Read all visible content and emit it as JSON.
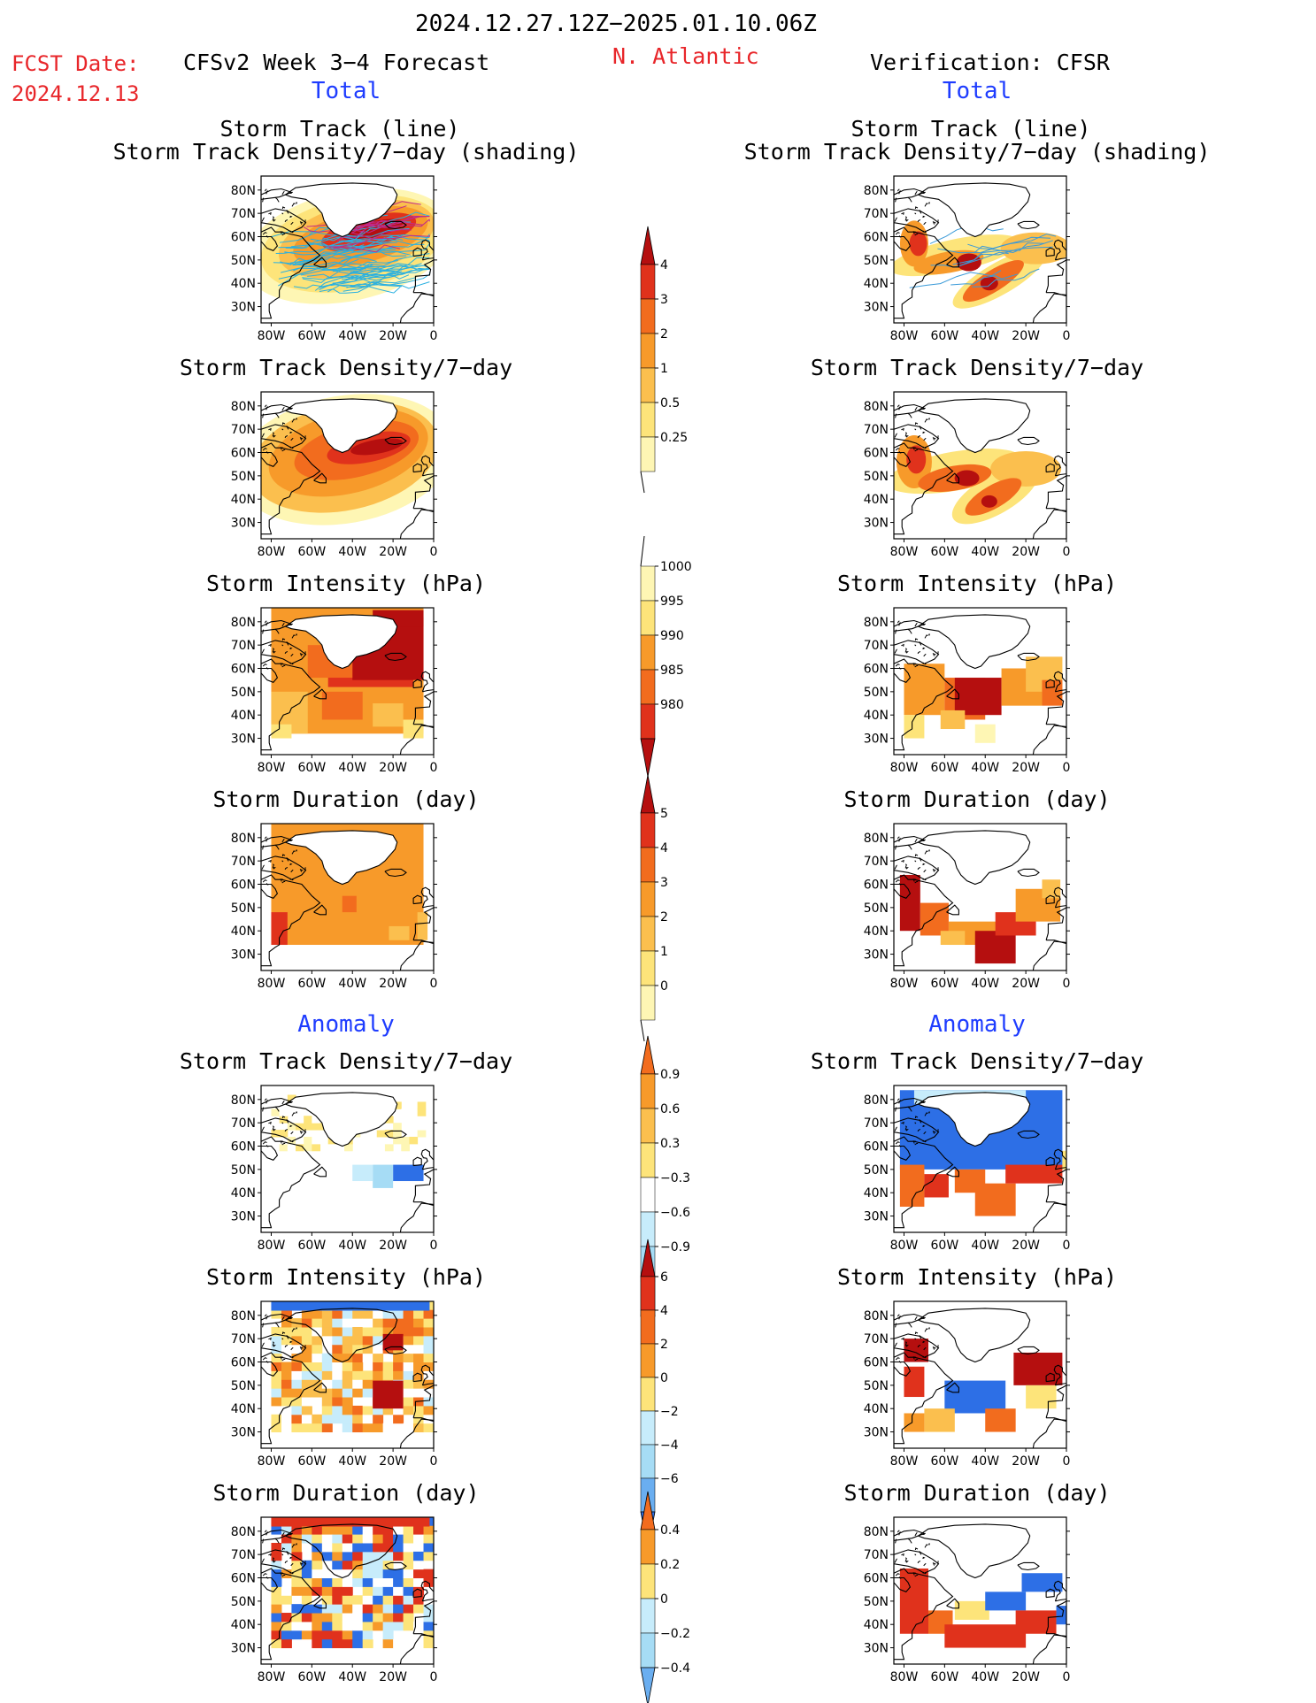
{
  "header": {
    "date_range": "2024.12.27.12Z−2025.01.10.06Z",
    "fcst_label": "FCST Date:",
    "fcst_date": "2024.12.13",
    "model_title": "CFSv2 Week 3−4 Forecast",
    "region": "N. Atlantic",
    "verification": "Verification: CFSR"
  },
  "sections": {
    "total": "Total",
    "anomaly": "Anomaly"
  },
  "axis_labels": {
    "lat": [
      "80N",
      "70N",
      "60N",
      "50N",
      "40N",
      "30N"
    ],
    "lon": [
      "80W",
      "60W",
      "40W",
      "20W",
      "0"
    ]
  },
  "colors": {
    "yellow_pale": "#fef6b4",
    "yellow": "#fde47a",
    "orange_light": "#fbbf4e",
    "orange": "#f79a2a",
    "orange_red": "#f26c1e",
    "red": "#e0321c",
    "dark_red": "#b50f0f",
    "blue_pale": "#c7ecfb",
    "blue_light": "#a6dcf5",
    "blue": "#6aaef0",
    "blue_dark": "#2d6fe6",
    "track_line": "#2ab0e0",
    "track_line_obs": "#3a9ad8"
  },
  "panels": {
    "forecast": [
      {
        "title": "Storm Track (line)",
        "title2": "Storm Track Density/7−day (shading)"
      },
      {
        "title": "Storm Track Density/7−day"
      },
      {
        "title": "Storm Intensity (hPa)"
      },
      {
        "title": "Storm Duration (day)"
      },
      {
        "title": "Storm Track Density/7−day"
      },
      {
        "title": "Storm Intensity (hPa)"
      },
      {
        "title": "Storm Duration (day)"
      }
    ],
    "verification": [
      {
        "title": "Storm Track (line)",
        "title2": "Storm Track Density/7−day (shading)"
      },
      {
        "title": "Storm Track Density/7−day"
      },
      {
        "title": "Storm Intensity (hPa)"
      },
      {
        "title": "Storm Duration (day)"
      },
      {
        "title": "Storm Track Density/7−day"
      },
      {
        "title": "Storm Intensity (hPa)"
      },
      {
        "title": "Storm Duration (day)"
      }
    ]
  },
  "colorbars": [
    {
      "name": "track-density",
      "labels": [
        "4",
        "3",
        "2",
        "1",
        "0.5",
        "0.25"
      ]
    },
    {
      "name": "intensity",
      "labels": [
        "1000",
        "995",
        "990",
        "985",
        "980"
      ]
    },
    {
      "name": "duration",
      "labels": [
        "5",
        "4",
        "3",
        "2",
        "1",
        "0"
      ]
    },
    {
      "name": "density-anomaly",
      "labels": [
        "0.9",
        "0.6",
        "0.3",
        "−0.3",
        "−0.6",
        "−0.9"
      ]
    },
    {
      "name": "intensity-anomaly",
      "labels": [
        "6",
        "4",
        "2",
        "0",
        "−2",
        "−4",
        "−6"
      ]
    },
    {
      "name": "duration-anomaly",
      "labels": [
        "0.4",
        "0.2",
        "0",
        "−0.2",
        "−0.4"
      ]
    }
  ]
}
